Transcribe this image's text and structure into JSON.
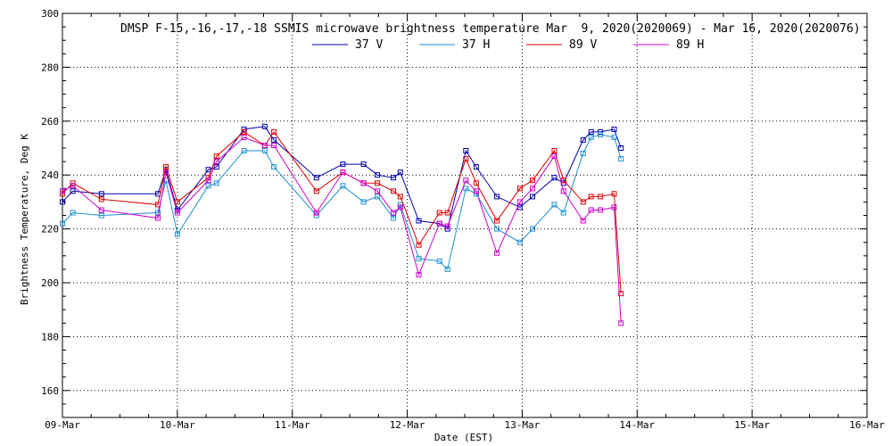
{
  "chart_data": {
    "type": "line",
    "title": "DMSP F-15,-16,-17,-18 SSMIS microwave brightness temperature Mar  9, 2020(2020069) - Mar 16, 2020(2020076)",
    "xlabel": "Date (EST)",
    "ylabel": "Brightness Temperature, Deg K",
    "xlim": [
      0,
      7
    ],
    "ylim": [
      150,
      300
    ],
    "x_unit": "days since 09-Mar 00:00 EST",
    "x_tick_labels": [
      "09-Mar",
      "10-Mar",
      "11-Mar",
      "12-Mar",
      "13-Mar",
      "14-Mar",
      "15-Mar",
      "16-Mar"
    ],
    "y_ticks": [
      160,
      180,
      200,
      220,
      240,
      260,
      280,
      300
    ],
    "grid": true,
    "legend": "top-center",
    "series": [
      {
        "name": "37 V",
        "color": "#0000aa",
        "points": [
          [
            0.0,
            230
          ],
          [
            0.09,
            234
          ],
          [
            0.34,
            233
          ],
          [
            0.83,
            233
          ],
          [
            0.9,
            242
          ],
          [
            1.0,
            227
          ],
          [
            1.27,
            242
          ],
          [
            1.34,
            243
          ],
          [
            1.58,
            257
          ],
          [
            1.76,
            258
          ],
          [
            1.84,
            253
          ],
          [
            2.21,
            239
          ],
          [
            2.44,
            244
          ],
          [
            2.62,
            244
          ],
          [
            2.74,
            240
          ],
          [
            2.88,
            239
          ],
          [
            2.94,
            241
          ],
          [
            3.1,
            223
          ],
          [
            3.28,
            222
          ],
          [
            3.35,
            220
          ],
          [
            3.51,
            249
          ],
          [
            3.6,
            243
          ],
          [
            3.78,
            232
          ],
          [
            3.98,
            228
          ],
          [
            4.09,
            232
          ],
          [
            4.28,
            239
          ],
          [
            4.36,
            237
          ],
          [
            4.53,
            253
          ],
          [
            4.6,
            256
          ],
          [
            4.68,
            256
          ],
          [
            4.8,
            257
          ],
          [
            4.86,
            250
          ]
        ]
      },
      {
        "name": "37 H",
        "color": "#1e90d0",
        "points": [
          [
            0.0,
            222
          ],
          [
            0.09,
            226
          ],
          [
            0.34,
            225
          ],
          [
            0.83,
            226
          ],
          [
            0.9,
            238
          ],
          [
            1.0,
            218
          ],
          [
            1.27,
            236
          ],
          [
            1.34,
            237
          ],
          [
            1.58,
            249
          ],
          [
            1.76,
            249
          ],
          [
            1.84,
            243
          ],
          [
            2.21,
            225
          ],
          [
            2.44,
            236
          ],
          [
            2.62,
            230
          ],
          [
            2.74,
            232
          ],
          [
            2.88,
            224
          ],
          [
            2.94,
            229
          ],
          [
            3.1,
            209
          ],
          [
            3.28,
            208
          ],
          [
            3.35,
            205
          ],
          [
            3.51,
            235
          ],
          [
            3.6,
            233
          ],
          [
            3.78,
            220
          ],
          [
            3.98,
            215
          ],
          [
            4.09,
            220
          ],
          [
            4.28,
            229
          ],
          [
            4.36,
            226
          ],
          [
            4.53,
            248
          ],
          [
            4.6,
            254
          ],
          [
            4.68,
            255
          ],
          [
            4.8,
            254
          ],
          [
            4.86,
            246
          ]
        ]
      },
      {
        "name": "89 V",
        "color": "#dd0000",
        "points": [
          [
            0.0,
            233
          ],
          [
            0.09,
            237
          ],
          [
            0.34,
            231
          ],
          [
            0.83,
            229
          ],
          [
            0.9,
            243
          ],
          [
            1.0,
            230
          ],
          [
            1.27,
            239
          ],
          [
            1.34,
            247
          ],
          [
            1.58,
            256
          ],
          [
            1.76,
            251
          ],
          [
            1.84,
            256
          ],
          [
            2.21,
            234
          ],
          [
            2.44,
            241
          ],
          [
            2.62,
            237
          ],
          [
            2.74,
            237
          ],
          [
            2.88,
            234
          ],
          [
            2.94,
            232
          ],
          [
            3.1,
            214
          ],
          [
            3.28,
            226
          ],
          [
            3.35,
            226
          ],
          [
            3.51,
            246
          ],
          [
            3.6,
            237
          ],
          [
            3.78,
            223
          ],
          [
            3.98,
            235
          ],
          [
            4.09,
            238
          ],
          [
            4.28,
            249
          ],
          [
            4.36,
            238
          ],
          [
            4.53,
            230
          ],
          [
            4.6,
            232
          ],
          [
            4.68,
            232
          ],
          [
            4.8,
            233
          ],
          [
            4.86,
            196
          ]
        ]
      },
      {
        "name": "89 H",
        "color": "#cc00cc",
        "points": [
          [
            0.0,
            234
          ],
          [
            0.09,
            236
          ],
          [
            0.34,
            227
          ],
          [
            0.83,
            224
          ],
          [
            0.9,
            241
          ],
          [
            1.0,
            226
          ],
          [
            1.27,
            238
          ],
          [
            1.34,
            245
          ],
          [
            1.58,
            254
          ],
          [
            1.76,
            251
          ],
          [
            1.84,
            251
          ],
          [
            2.21,
            226
          ],
          [
            2.44,
            241
          ],
          [
            2.62,
            237
          ],
          [
            2.74,
            234
          ],
          [
            2.88,
            226
          ],
          [
            2.94,
            228
          ],
          [
            3.1,
            203
          ],
          [
            3.28,
            222
          ],
          [
            3.35,
            221
          ],
          [
            3.51,
            238
          ],
          [
            3.6,
            234
          ],
          [
            3.78,
            211
          ],
          [
            3.98,
            230
          ],
          [
            4.09,
            235
          ],
          [
            4.28,
            247
          ],
          [
            4.36,
            234
          ],
          [
            4.53,
            223
          ],
          [
            4.6,
            227
          ],
          [
            4.68,
            227
          ],
          [
            4.8,
            228
          ],
          [
            4.86,
            185
          ]
        ]
      }
    ]
  }
}
